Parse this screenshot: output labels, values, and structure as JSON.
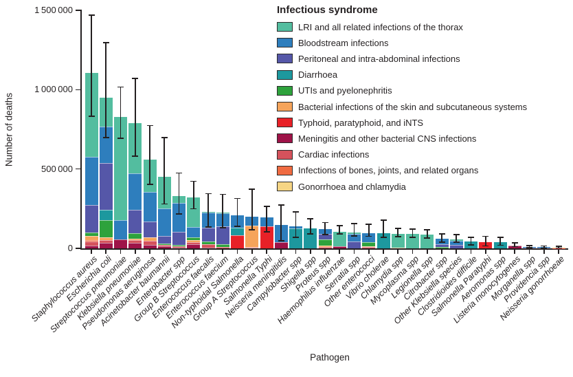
{
  "figure_title": "",
  "chart_data": {
    "type": "bar",
    "stacked": true,
    "title": "",
    "xlabel": "Pathogen",
    "ylabel": "Number of deaths",
    "ylim": [
      0,
      1500000
    ],
    "yticks": [
      0,
      500000,
      1000000,
      1500000
    ],
    "ytick_labels": [
      "0",
      "500 000",
      "1 000 000",
      "1 500 000"
    ],
    "grid": false,
    "error_bars": true,
    "legend_position": "top-right",
    "legend_title": "Infectious syndrome",
    "axis_color": "#231F20",
    "categories": [
      "Staphylococcus aureus",
      "Escherichia coli",
      "Streptococcus pneumoniae",
      "Klebsiella pneumoniae",
      "Pseudomonas aeruginosa",
      "Acinetobacter baumannii",
      "Enterobacter spp",
      "Group B Streptococcus",
      "Enterococcus faecalis",
      "Enterococcus faecium",
      "Non-typhoidal Salmonella",
      "Group A Streptococcus",
      "Salmonella Typhi",
      "Neisseria meningitidis",
      "Campylobacter spp",
      "Shigella spp",
      "Proteus spp",
      "Haemophilus influenzae",
      "Serratia spp",
      "Other enterococci",
      "Vibrio cholerae",
      "Chlamydia spp",
      "Mycoplasma spp",
      "Legionella spp",
      "Citrobacter spp",
      "Other Klebsiella species",
      "Clostridioides difficile",
      "Salmonella Paratyphi",
      "Aeromonas spp",
      "Listeria monocytogenes",
      "Morganella spp",
      "Providencia spp",
      "Neisseria gonorrhoeae"
    ],
    "syndromes": [
      {
        "id": "lri",
        "label": "LRI and all related infections of the thorax",
        "color": "#53BD9F"
      },
      {
        "id": "blood",
        "label": "Bloodstream infections",
        "color": "#2E7EBD"
      },
      {
        "id": "perit",
        "label": "Peritoneal and intra-abdominal infections",
        "color": "#5557A8"
      },
      {
        "id": "diarr",
        "label": "Diarrhoea",
        "color": "#1D989E"
      },
      {
        "id": "uti",
        "label": "UTIs and pyelonephritis",
        "color": "#2EA23C"
      },
      {
        "id": "skin",
        "label": "Bacterial infections of the skin and subcutaneous systems",
        "color": "#F6A45B"
      },
      {
        "id": "typhoid",
        "label": "Typhoid, paratyphoid, and iNTS",
        "color": "#E82127"
      },
      {
        "id": "mening",
        "label": "Meningitis and other bacterial CNS infections",
        "color": "#9E1348"
      },
      {
        "id": "cardiac",
        "label": "Cardiac infections",
        "color": "#D5525C"
      },
      {
        "id": "bones",
        "label": "Infections of bones, joints, and related organs",
        "color": "#F06B41"
      },
      {
        "id": "gono",
        "label": "Gonorrhoea and chlamydia",
        "color": "#F6D584"
      }
    ],
    "stack_order_bottom_up": [
      "mening",
      "cardiac",
      "bones",
      "gono",
      "typhoid",
      "skin",
      "uti",
      "diarr",
      "perit",
      "blood",
      "lri"
    ],
    "series": [
      {
        "id": "lri",
        "name": "LRI and all related infections of the thorax",
        "values": [
          530000,
          182000,
          651000,
          317000,
          202000,
          200000,
          45000,
          185000,
          6000,
          3000,
          0,
          0,
          0,
          0,
          0,
          0,
          0,
          92000,
          8000,
          0,
          0,
          85000,
          89000,
          87000,
          0,
          10000,
          0,
          0,
          0,
          0,
          0,
          0,
          0
        ]
      },
      {
        "id": "blood",
        "name": "Bloodstream infections",
        "values": [
          300000,
          231000,
          123000,
          231000,
          188000,
          172000,
          180000,
          68000,
          94000,
          85000,
          80000,
          58000,
          58000,
          107000,
          15000,
          0,
          30000,
          0,
          50000,
          58000,
          0,
          0,
          0,
          0,
          35000,
          28000,
          0,
          0,
          0,
          3000,
          5000,
          4000,
          0
        ]
      },
      {
        "id": "perit",
        "name": "Peritoneal and intra-abdominal infections",
        "values": [
          173000,
          292000,
          0,
          145000,
          101000,
          50000,
          85000,
          0,
          87000,
          112000,
          0,
          0,
          0,
          0,
          0,
          0,
          35000,
          0,
          42000,
          0,
          0,
          0,
          0,
          0,
          20000,
          20000,
          0,
          0,
          0,
          0,
          4000,
          4000,
          0
        ]
      },
      {
        "id": "diarr",
        "name": "Diarrhoea",
        "values": [
          0,
          68000,
          0,
          0,
          0,
          0,
          0,
          0,
          0,
          0,
          46000,
          0,
          0,
          0,
          124000,
          127000,
          0,
          0,
          0,
          0,
          95000,
          0,
          0,
          0,
          0,
          0,
          42000,
          0,
          41000,
          0,
          0,
          0,
          0
        ]
      },
      {
        "id": "uti",
        "name": "UTIs and pyelonephritis",
        "values": [
          22000,
          108000,
          0,
          36000,
          0,
          8000,
          8000,
          15000,
          17000,
          17000,
          0,
          0,
          0,
          0,
          0,
          0,
          38000,
          0,
          0,
          22000,
          0,
          0,
          0,
          0,
          7000,
          0,
          0,
          0,
          0,
          0,
          0,
          0,
          0
        ]
      },
      {
        "id": "skin",
        "name": "Bacterial infections of the skin and subcutaneous systems",
        "values": [
          30000,
          19000,
          0,
          10000,
          22000,
          0,
          0,
          13000,
          0,
          0,
          0,
          132000,
          0,
          0,
          0,
          0,
          9000,
          0,
          0,
          8000,
          0,
          0,
          0,
          0,
          0,
          0,
          0,
          0,
          0,
          0,
          0,
          0,
          0
        ]
      },
      {
        "id": "typhoid",
        "name": "Typhoid, paratyphoid, and iNTS",
        "values": [
          0,
          0,
          0,
          0,
          0,
          0,
          0,
          0,
          0,
          0,
          84000,
          0,
          137000,
          0,
          0,
          0,
          0,
          0,
          0,
          0,
          0,
          0,
          0,
          0,
          0,
          0,
          0,
          39000,
          0,
          0,
          0,
          0,
          0
        ]
      },
      {
        "id": "mening",
        "name": "Meningitis and other bacterial CNS infections",
        "values": [
          16000,
          33000,
          55000,
          36000,
          20000,
          14000,
          6000,
          28000,
          6000,
          0,
          0,
          0,
          0,
          40000,
          0,
          0,
          0,
          13000,
          0,
          0,
          0,
          0,
          0,
          0,
          0,
          0,
          0,
          0,
          0,
          16000,
          0,
          0,
          0
        ]
      },
      {
        "id": "cardiac",
        "name": "Cardiac infections",
        "values": [
          26000,
          17000,
          0,
          15000,
          26000,
          8000,
          6000,
          12000,
          20000,
          8000,
          0,
          5000,
          0,
          0,
          0,
          0,
          8000,
          0,
          0,
          7000,
          0,
          0,
          0,
          0,
          0,
          0,
          0,
          0,
          0,
          0,
          0,
          0,
          1000
        ]
      },
      {
        "id": "bones",
        "name": "Infections of bones, joints, and related organs",
        "values": [
          8000,
          0,
          0,
          0,
          0,
          0,
          0,
          0,
          0,
          0,
          0,
          5000,
          0,
          0,
          0,
          0,
          0,
          0,
          0,
          0,
          0,
          0,
          0,
          0,
          0,
          0,
          0,
          0,
          0,
          0,
          0,
          0,
          0
        ]
      },
      {
        "id": "gono",
        "name": "Gonorrhoea and chlamydia",
        "values": [
          0,
          0,
          0,
          0,
          0,
          0,
          0,
          0,
          0,
          0,
          0,
          0,
          0,
          0,
          0,
          0,
          0,
          0,
          0,
          0,
          0,
          6000,
          0,
          0,
          0,
          0,
          0,
          0,
          0,
          0,
          0,
          0,
          5000
        ]
      }
    ],
    "totals": [
      1105000,
      950000,
      829000,
      790000,
      559000,
      452000,
      330000,
      321000,
      230000,
      225000,
      210000,
      200000,
      195000,
      147000,
      139000,
      127000,
      120000,
      105000,
      100000,
      95000,
      95000,
      91000,
      89000,
      87000,
      62000,
      58000,
      42000,
      39000,
      41000,
      19000,
      9000,
      8000,
      6000
    ],
    "uncertainty_intervals": [
      [
        832000,
        1470000
      ],
      [
        698000,
        1296000
      ],
      [
        694000,
        1016000
      ],
      [
        580000,
        1071000
      ],
      [
        402000,
        773000
      ],
      [
        279000,
        698000
      ],
      [
        217000,
        474000
      ],
      [
        250000,
        423000
      ],
      [
        134000,
        344000
      ],
      [
        130000,
        340000
      ],
      [
        140000,
        315000
      ],
      [
        118000,
        373000
      ],
      [
        105000,
        264000
      ],
      [
        48000,
        273000
      ],
      [
        69000,
        230000
      ],
      [
        91000,
        186000
      ],
      [
        87000,
        163000
      ],
      [
        91000,
        142000
      ],
      [
        77000,
        156000
      ],
      [
        75000,
        152000
      ],
      [
        69000,
        178000
      ],
      [
        74000,
        126000
      ],
      [
        69000,
        121000
      ],
      [
        65000,
        117000
      ],
      [
        39000,
        91000
      ],
      [
        38000,
        87000
      ],
      [
        22000,
        69000
      ],
      [
        16000,
        75000
      ],
      [
        20000,
        70000
      ],
      [
        10000,
        35000
      ],
      [
        4000,
        18000
      ],
      [
        3000,
        16000
      ],
      [
        2000,
        12000
      ]
    ]
  }
}
